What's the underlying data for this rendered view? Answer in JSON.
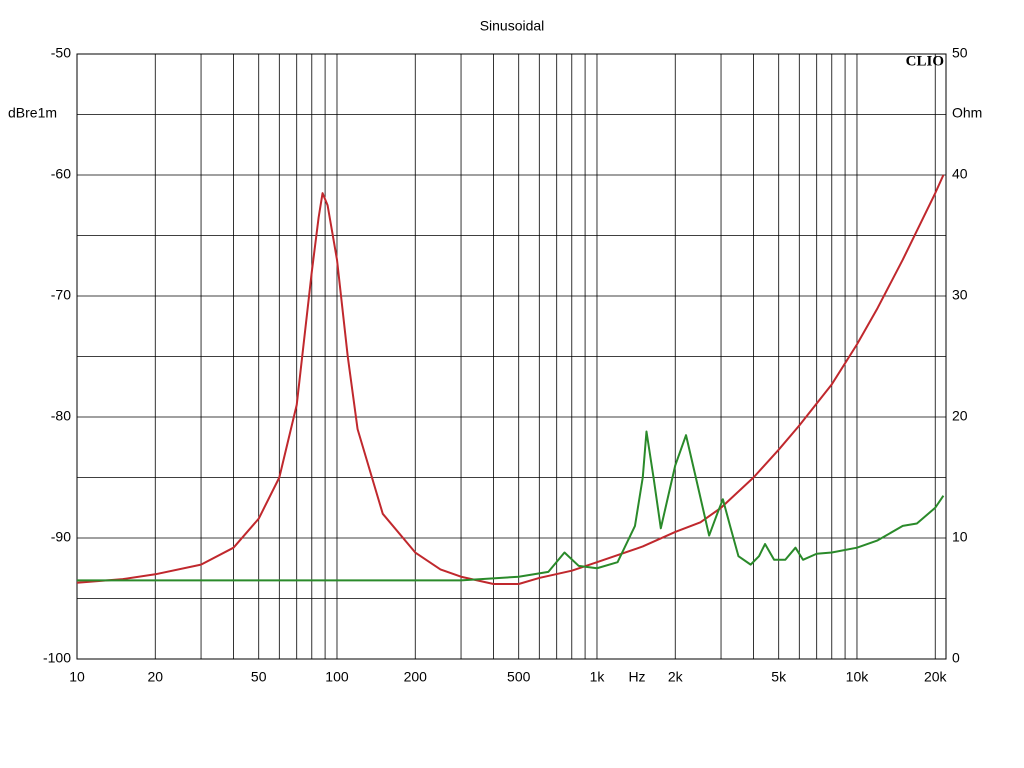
{
  "chart_data": {
    "type": "line",
    "title": "Sinusoidal",
    "logo": "CLIO",
    "y_label": "dBre1m",
    "y2_label": "Ohm",
    "x_unit": "Hz",
    "xscale": "log",
    "xlim": [
      10,
      22000
    ],
    "xticks": [
      10,
      20,
      50,
      100,
      200,
      500,
      {
        "value": 1000,
        "label": "1k"
      },
      {
        "value": 2000,
        "label": "2k"
      },
      {
        "value": 5000,
        "label": "5k"
      },
      {
        "value": 10000,
        "label": "10k"
      },
      {
        "value": 20000,
        "label": "20k"
      }
    ],
    "xgrid": [
      10,
      20,
      30,
      40,
      50,
      60,
      70,
      80,
      90,
      100,
      200,
      300,
      400,
      500,
      600,
      700,
      800,
      900,
      1000,
      2000,
      3000,
      4000,
      5000,
      6000,
      7000,
      8000,
      9000,
      10000,
      20000
    ],
    "ylim": [
      -100,
      -50
    ],
    "yticks": [
      -100,
      -90,
      -80,
      -70,
      -60,
      -50
    ],
    "ygrid": [
      -100,
      -95,
      -90,
      -85,
      -80,
      -75,
      -70,
      -65,
      -60,
      -55,
      -50
    ],
    "y2lim": [
      0,
      50
    ],
    "y2ticks": [
      0,
      10,
      20,
      30,
      40,
      50
    ],
    "grid": true,
    "series": [
      {
        "color": "#c0282d",
        "axis": "y2",
        "x": [
          10,
          15,
          20,
          30,
          40,
          50,
          60,
          70,
          80,
          85,
          88,
          92,
          100,
          110,
          120,
          150,
          200,
          250,
          300,
          400,
          500,
          600,
          800,
          1000,
          1500,
          2000,
          2500,
          3000,
          4000,
          5000,
          6000,
          8000,
          10000,
          12000,
          15000,
          20000,
          21500
        ],
        "values": [
          6.3,
          6.6,
          7.0,
          7.8,
          9.2,
          11.6,
          15.0,
          21.0,
          32.0,
          36.5,
          38.5,
          37.5,
          33.0,
          25.0,
          19.0,
          12.0,
          8.8,
          7.4,
          6.8,
          6.2,
          6.2,
          6.7,
          7.3,
          8.0,
          9.3,
          10.5,
          11.3,
          12.5,
          15.0,
          17.3,
          19.3,
          22.7,
          26.0,
          29.0,
          33.0,
          38.5,
          40.0
        ]
      },
      {
        "color": "#2a8a2a",
        "axis": "y",
        "x": [
          10,
          100,
          300,
          500,
          650,
          750,
          850,
          1000,
          1200,
          1400,
          1500,
          1550,
          1650,
          1760,
          2000,
          2200,
          2400,
          2700,
          2900,
          3050,
          3250,
          3500,
          3900,
          4200,
          4430,
          4800,
          5300,
          5800,
          6200,
          7000,
          8000,
          10000,
          12000,
          15000,
          17000,
          20000,
          21500
        ],
        "values": [
          -93.5,
          -93.5,
          -93.5,
          -93.2,
          -92.8,
          -91.2,
          -92.3,
          -92.5,
          -92.0,
          -89.0,
          -85.0,
          -81.2,
          -85.0,
          -89.2,
          -84.0,
          -81.5,
          -85.0,
          -89.8,
          -88.0,
          -86.8,
          -89.0,
          -91.5,
          -92.2,
          -91.5,
          -90.5,
          -91.8,
          -91.8,
          -90.8,
          -91.8,
          -91.3,
          -91.2,
          -90.8,
          -90.2,
          -89.0,
          -88.8,
          -87.5,
          -86.5
        ]
      }
    ]
  }
}
